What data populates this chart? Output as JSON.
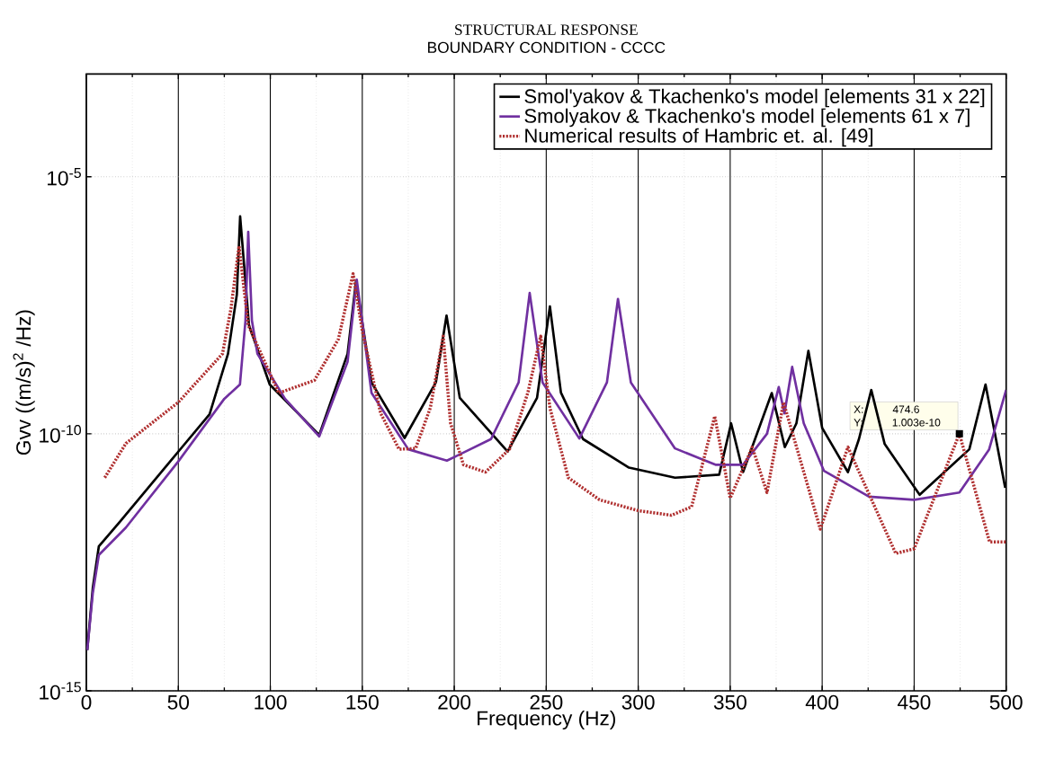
{
  "chart_data": {
    "type": "line",
    "title": "STRUCTURAL RESPONSE",
    "subtitle": "BOUNDARY CONDITION - CCCC",
    "xlabel": "Frequency (Hz)",
    "ylabel": "Gvv ((m/s)$^{2}$ /Hz)",
    "log": "y",
    "grid": true,
    "legend": "top right",
    "marker": "none",
    "xlim": [
      0,
      500
    ],
    "ylim": [
      1e-15,
      0.001
    ],
    "xticks": [
      0,
      50,
      100,
      150,
      200,
      250,
      300,
      350,
      400,
      450,
      500
    ],
    "yticks": [
      {
        "value": 1e-15,
        "label": "10$^{-15}$"
      },
      {
        "value": 1e-10,
        "label": "10$^{-10}$"
      },
      {
        "value": 1e-05,
        "label": "10$^{-5}$"
      }
    ],
    "annotations": [
      {
        "text": "X: 474.6 Y: 1.003e-10",
        "x": 474.6,
        "y": 1.003e-10
      }
    ],
    "series": [
      {
        "name": "Smol'yakov & Tkachenko's model [elements 31 x 22]",
        "color": "#000000",
        "line_style": "solid",
        "x": [
          0.5,
          3.5,
          6.8,
          18,
          50,
          67,
          77,
          81.8,
          83.6,
          88.4,
          99.7,
          126.6,
          142,
          146.6,
          155,
          173,
          190,
          195.8,
          203,
          229,
          245,
          252,
          258,
          270,
          295,
          320,
          344,
          350.5,
          357,
          372.6,
          379.7,
          386,
          392.5,
          400,
          414,
          420,
          426.7,
          434,
          453,
          480,
          488.8,
          495,
          499.5
        ],
        "values": [
          6.2e-15,
          1e-13,
          6.5e-13,
          1.9e-12,
          4.5e-11,
          2.4e-10,
          3.6e-09,
          5.1e-08,
          1.7e-06,
          1.3e-08,
          9.1e-10,
          9.5e-11,
          3.6e-09,
          9.3e-08,
          1e-09,
          8.3e-11,
          1e-09,
          2e-08,
          5e-10,
          4.5e-11,
          5e-10,
          3e-08,
          6.3e-10,
          7.9e-11,
          2.2e-11,
          1.4e-11,
          1.6e-11,
          1.6e-10,
          1.8e-11,
          6.2e-10,
          5.5e-11,
          1.6e-10,
          4.1e-09,
          1.3e-10,
          1.8e-11,
          7.9e-11,
          7.1e-10,
          6.3e-11,
          6.5e-12,
          5e-11,
          9.1e-10,
          6.3e-11,
          8.9e-12
        ]
      },
      {
        "name": "Smolyakov & Tkachenko's model [elements 61 x 7]",
        "color": "#7030a0",
        "line_style": "solid",
        "x": [
          0.5,
          3.5,
          6.8,
          21.5,
          50,
          75,
          83.5,
          86.5,
          88,
          90,
          93,
          108,
          126.6,
          142,
          147,
          155,
          175,
          196,
          220,
          235,
          241,
          248,
          268,
          283,
          289,
          296,
          320,
          342,
          357,
          370,
          376.4,
          379.5,
          383.7,
          390,
          401,
          425.5,
          450,
          474.6,
          490.7,
          500
        ],
        "values": [
          6.2e-15,
          7.9e-14,
          4.4e-13,
          1.5e-12,
          2.9e-11,
          4.8e-10,
          9.1e-10,
          1.6e-08,
          8.5e-07,
          1.6e-08,
          3.6e-09,
          4.8e-10,
          8.9e-11,
          2.5e-09,
          1e-07,
          6.3e-10,
          5e-11,
          3e-11,
          7.9e-11,
          1e-09,
          5.5e-08,
          1e-09,
          8.1e-11,
          1e-09,
          4.2e-08,
          1e-09,
          5.2e-11,
          2.5e-11,
          2.5e-11,
          1e-10,
          8.1e-10,
          2.5e-10,
          2e-09,
          1.6e-10,
          1.9e-11,
          6e-12,
          5.2e-12,
          7.2e-12,
          4.9e-11,
          7.1e-10
        ]
      },
      {
        "name": "Numerical results of Hambric et. al. [49]",
        "color": "#b03030",
        "line_style": "dotted",
        "x": [
          10,
          21.5,
          50,
          74,
          78.6,
          83,
          88,
          104.6,
          124,
          137,
          145,
          150,
          160,
          170,
          179,
          187,
          194,
          198,
          205,
          217,
          230,
          240,
          247,
          252,
          262,
          279,
          300,
          318,
          329,
          341.6,
          350,
          362,
          370,
          379,
          399,
          414,
          440,
          450,
          474.6,
          491,
          500
        ],
        "values": [
          1.4e-11,
          6.5e-11,
          4.1e-10,
          3.6e-09,
          2.7e-08,
          4.5e-07,
          1.3e-08,
          6.2e-10,
          1.1e-09,
          6.9e-09,
          1.3e-07,
          1e-08,
          2.5e-10,
          5e-11,
          5.2e-11,
          3.2e-10,
          7.9e-09,
          1.6e-10,
          2.5e-11,
          1.8e-11,
          5e-11,
          6.3e-10,
          7.9e-09,
          3.2e-10,
          1.4e-11,
          5.2e-12,
          3.2e-12,
          2.6e-12,
          3.8e-12,
          2.2e-10,
          5.6e-12,
          5.5e-11,
          7.2e-12,
          4.1e-10,
          1.4e-12,
          5.5e-11,
          4.7e-13,
          5.8e-13,
          1e-10,
          7.9e-13,
          7.9e-13
        ]
      }
    ]
  }
}
